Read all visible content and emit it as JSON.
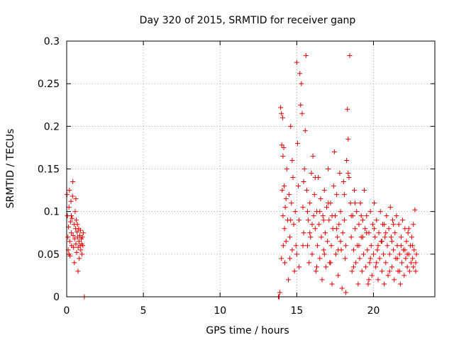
{
  "chart_data": {
    "type": "scatter",
    "title": "Day 320 of 2015, SRMTID for receiver ganp",
    "xlabel": "GPS time / hours",
    "ylabel": "SRMTID / TECUs",
    "xlim": [
      0,
      24
    ],
    "ylim": [
      0,
      0.3
    ],
    "x_ticks": [
      0,
      5,
      10,
      15,
      20
    ],
    "x_tick_labels": [
      "0",
      "5",
      "10",
      "15",
      "20"
    ],
    "y_ticks": [
      0,
      0.05,
      0.1,
      0.15,
      0.2,
      0.25,
      0.3
    ],
    "y_tick_labels": [
      "0",
      "0.05",
      "0.1",
      "0.15",
      "0.2",
      "0.25",
      "0.3"
    ],
    "grid": true,
    "marker": "+",
    "series": [
      {
        "name": "ganp SRMTID",
        "color": "#e00000",
        "points": [
          [
            0.02,
            0.12
          ],
          [
            0.05,
            0.095
          ],
          [
            0.08,
            0.07
          ],
          [
            0.1,
            0.055
          ],
          [
            0.12,
            0.082
          ],
          [
            0.15,
            0.105
          ],
          [
            0.18,
            0.125
          ],
          [
            0.2,
            0.065
          ],
          [
            0.22,
            0.048
          ],
          [
            0.25,
            0.088
          ],
          [
            0.28,
            0.112
          ],
          [
            0.3,
            0.075
          ],
          [
            0.32,
            0.06
          ],
          [
            0.35,
            0.092
          ],
          [
            0.38,
            0.118
          ],
          [
            0.4,
            0.135
          ],
          [
            0.42,
            0.072
          ],
          [
            0.45,
            0.058
          ],
          [
            0.48,
            0.085
          ],
          [
            0.5,
            0.04
          ],
          [
            0.52,
            0.068
          ],
          [
            0.55,
            0.1
          ],
          [
            0.58,
            0.08
          ],
          [
            0.6,
            0.062
          ],
          [
            0.62,
            0.09
          ],
          [
            0.65,
            0.052
          ],
          [
            0.68,
            0.076
          ],
          [
            0.7,
            0.085
          ],
          [
            0.72,
            0.07
          ],
          [
            0.75,
            0.058
          ],
          [
            0.78,
            0.08
          ],
          [
            0.8,
            0.065
          ],
          [
            0.82,
            0.045
          ],
          [
            0.85,
            0.072
          ],
          [
            0.88,
            0.06
          ],
          [
            0.9,
            0.078
          ],
          [
            0.92,
            0.055
          ],
          [
            0.95,
            0.068
          ],
          [
            0.98,
            0.062
          ],
          [
            1.0,
            0.05
          ],
          [
            1.02,
            0.07
          ],
          [
            1.05,
            0.06
          ],
          [
            1.08,
            0.075
          ],
          [
            0.74,
            0.03
          ],
          [
            0.15,
            0.05
          ],
          [
            0.3,
            0.095
          ],
          [
            0.6,
            0.115
          ],
          [
            1.15,
            0.0
          ],
          [
            13.8,
            0.0
          ],
          [
            13.85,
            0.0
          ],
          [
            13.9,
            0.005
          ],
          [
            13.95,
            0.222
          ],
          [
            14.0,
            0.215
          ],
          [
            14.02,
            0.178
          ],
          [
            14.05,
            0.125
          ],
          [
            14.08,
            0.21
          ],
          [
            14.1,
            0.095
          ],
          [
            14.12,
            0.06
          ],
          [
            14.15,
            0.175
          ],
          [
            14.18,
            0.13
          ],
          [
            14.2,
            0.08
          ],
          [
            14.22,
            0.04
          ],
          [
            14.25,
            0.105
          ],
          [
            14.3,
            0.065
          ],
          [
            14.35,
            0.15
          ],
          [
            14.4,
            0.09
          ],
          [
            14.45,
            0.02
          ],
          [
            14.5,
            0.12
          ],
          [
            14.55,
            0.07
          ],
          [
            14.6,
            0.2
          ],
          [
            14.65,
            0.11
          ],
          [
            14.7,
            0.055
          ],
          [
            14.75,
            0.14
          ],
          [
            14.8,
            0.085
          ],
          [
            14.85,
            0.03
          ],
          [
            14.9,
            0.1
          ],
          [
            14.95,
            0.06
          ],
          [
            15.0,
            0.275
          ],
          [
            15.05,
            0.18
          ],
          [
            15.1,
            0.13
          ],
          [
            15.15,
            0.09
          ],
          [
            15.2,
            0.262
          ],
          [
            15.25,
            0.225
          ],
          [
            15.3,
            0.25
          ],
          [
            15.35,
            0.215
          ],
          [
            15.4,
            0.105
          ],
          [
            15.45,
            0.075
          ],
          [
            15.5,
            0.15
          ],
          [
            15.55,
            0.195
          ],
          [
            15.6,
            0.283
          ],
          [
            15.65,
            0.125
          ],
          [
            15.7,
            0.06
          ],
          [
            15.75,
            0.09
          ],
          [
            15.8,
            0.04
          ],
          [
            15.85,
            0.11
          ],
          [
            15.9,
            0.07
          ],
          [
            15.95,
            0.145
          ],
          [
            16.0,
            0.05
          ],
          [
            16.05,
            0.165
          ],
          [
            16.1,
            0.095
          ],
          [
            16.15,
            0.12
          ],
          [
            16.2,
            0.08
          ],
          [
            16.25,
            0.03
          ],
          [
            16.3,
            0.1
          ],
          [
            16.35,
            0.06
          ],
          [
            16.4,
            0.14
          ],
          [
            16.45,
            0.085
          ],
          [
            16.5,
            0.045
          ],
          [
            16.55,
            0.115
          ],
          [
            16.6,
            0.07
          ],
          [
            16.65,
            0.02
          ],
          [
            16.7,
            0.095
          ],
          [
            16.75,
            0.055
          ],
          [
            16.8,
            0.125
          ],
          [
            16.85,
            0.075
          ],
          [
            16.9,
            0.035
          ],
          [
            16.95,
            0.105
          ],
          [
            17.0,
            0.065
          ],
          [
            17.05,
            0.15
          ],
          [
            17.1,
            0.09
          ],
          [
            17.15,
            0.04
          ],
          [
            17.2,
            0.11
          ],
          [
            17.25,
            0.06
          ],
          [
            17.3,
            0.015
          ],
          [
            17.35,
            0.08
          ],
          [
            17.4,
            0.13
          ],
          [
            17.45,
            0.17
          ],
          [
            17.5,
            0.095
          ],
          [
            17.55,
            0.05
          ],
          [
            17.6,
            0.12
          ],
          [
            17.65,
            0.07
          ],
          [
            17.7,
            0.025
          ],
          [
            17.75,
            0.085
          ],
          [
            17.8,
            0.145
          ],
          [
            17.85,
            0.1
          ],
          [
            17.9,
            0.055
          ],
          [
            17.95,
            0.01
          ],
          [
            18.0,
            0.075
          ],
          [
            18.05,
            0.135
          ],
          [
            18.1,
            0.09
          ],
          [
            18.15,
            0.045
          ],
          [
            18.2,
            0.005
          ],
          [
            18.25,
            0.16
          ],
          [
            18.3,
            0.22
          ],
          [
            18.35,
            0.185
          ],
          [
            18.4,
            0.14
          ],
          [
            18.45,
            0.283
          ],
          [
            18.5,
            0.11
          ],
          [
            18.55,
            0.07
          ],
          [
            18.6,
            0.03
          ],
          [
            18.65,
            0.095
          ],
          [
            18.7,
            0.055
          ],
          [
            18.75,
            0.125
          ],
          [
            18.8,
            0.08
          ],
          [
            18.85,
            0.04
          ],
          [
            18.9,
            0.1
          ],
          [
            18.95,
            0.06
          ],
          [
            19.0,
            0.015
          ],
          [
            19.05,
            0.085
          ],
          [
            19.1,
            0.045
          ],
          [
            19.15,
            0.11
          ],
          [
            19.2,
            0.07
          ],
          [
            19.25,
            0.03
          ],
          [
            19.3,
            0.09
          ],
          [
            19.35,
            0.05
          ],
          [
            19.4,
            0.125
          ],
          [
            19.45,
            0.08
          ],
          [
            19.5,
            0.035
          ],
          [
            19.55,
            0.095
          ],
          [
            19.6,
            0.055
          ],
          [
            19.65,
            0.015
          ],
          [
            19.7,
            0.075
          ],
          [
            19.75,
            0.04
          ],
          [
            19.8,
            0.1
          ],
          [
            19.85,
            0.06
          ],
          [
            19.9,
            0.025
          ],
          [
            19.95,
            0.085
          ],
          [
            20.0,
            0.05
          ],
          [
            20.05,
            0.11
          ],
          [
            20.1,
            0.07
          ],
          [
            20.15,
            0.035
          ],
          [
            20.2,
            0.09
          ],
          [
            20.25,
            0.055
          ],
          [
            20.3,
            0.02
          ],
          [
            20.35,
            0.075
          ],
          [
            20.4,
            0.045
          ],
          [
            20.45,
            0.1
          ],
          [
            20.5,
            0.065
          ],
          [
            20.55,
            0.03
          ],
          [
            20.6,
            0.085
          ],
          [
            20.65,
            0.05
          ],
          [
            20.7,
            0.015
          ],
          [
            20.75,
            0.07
          ],
          [
            20.8,
            0.04
          ],
          [
            20.85,
            0.095
          ],
          [
            20.9,
            0.06
          ],
          [
            20.95,
            0.025
          ],
          [
            21.0,
            0.08
          ],
          [
            21.05,
            0.05
          ],
          [
            21.1,
            0.105
          ],
          [
            21.15,
            0.07
          ],
          [
            21.2,
            0.035
          ],
          [
            21.25,
            0.09
          ],
          [
            21.3,
            0.055
          ],
          [
            21.35,
            0.02
          ],
          [
            21.4,
            0.075
          ],
          [
            21.45,
            0.045
          ],
          [
            21.5,
            0.095
          ],
          [
            21.55,
            0.06
          ],
          [
            21.6,
            0.03
          ],
          [
            21.65,
            0.085
          ],
          [
            21.7,
            0.05
          ],
          [
            21.75,
            0.015
          ],
          [
            21.8,
            0.07
          ],
          [
            21.85,
            0.04
          ],
          [
            21.9,
            0.09
          ],
          [
            21.95,
            0.055
          ],
          [
            22.0,
            0.025
          ],
          [
            22.05,
            0.08
          ],
          [
            22.1,
            0.045
          ],
          [
            22.15,
            0.065
          ],
          [
            22.2,
            0.035
          ],
          [
            22.25,
            0.075
          ],
          [
            22.3,
            0.05
          ],
          [
            22.35,
            0.03
          ],
          [
            22.4,
            0.06
          ],
          [
            22.45,
            0.04
          ],
          [
            22.5,
            0.07
          ],
          [
            22.55,
            0.045
          ],
          [
            22.6,
            0.035
          ],
          [
            22.65,
            0.055
          ],
          [
            22.7,
            0.102
          ],
          [
            22.75,
            0.04
          ],
          [
            22.8,
            0.05
          ],
          [
            14.1,
            0.165
          ],
          [
            14.3,
            0.115
          ],
          [
            14.55,
            0.045
          ],
          [
            14.7,
            0.16
          ],
          [
            15.15,
            0.035
          ],
          [
            15.45,
            0.135
          ],
          [
            15.7,
            0.1
          ],
          [
            16.0,
            0.085
          ],
          [
            16.2,
            0.14
          ],
          [
            16.5,
            0.1
          ],
          [
            16.8,
            0.05
          ],
          [
            17.05,
            0.11
          ],
          [
            17.3,
            0.095
          ],
          [
            17.6,
            0.08
          ],
          [
            17.85,
            0.065
          ],
          [
            18.1,
            0.12
          ],
          [
            18.35,
            0.145
          ],
          [
            18.55,
            0.095
          ],
          [
            18.8,
            0.11
          ],
          [
            19.05,
            0.06
          ],
          [
            19.3,
            0.07
          ],
          [
            19.55,
            0.075
          ],
          [
            19.8,
            0.045
          ],
          [
            20.05,
            0.08
          ],
          [
            20.3,
            0.06
          ],
          [
            20.55,
            0.065
          ],
          [
            20.8,
            0.075
          ],
          [
            21.05,
            0.03
          ],
          [
            21.3,
            0.085
          ],
          [
            21.55,
            0.045
          ],
          [
            21.8,
            0.06
          ],
          [
            22.05,
            0.055
          ],
          [
            22.3,
            0.08
          ],
          [
            22.55,
            0.06
          ],
          [
            22.75,
            0.03
          ],
          [
            14.0,
            0.045
          ],
          [
            14.6,
            0.09
          ],
          [
            15.0,
            0.05
          ],
          [
            15.4,
            0.06
          ],
          [
            15.85,
            0.075
          ],
          [
            16.3,
            0.035
          ],
          [
            16.75,
            0.09
          ],
          [
            17.2,
            0.04
          ],
          [
            17.7,
            0.055
          ],
          [
            18.2,
            0.06
          ],
          [
            18.7,
            0.035
          ],
          [
            19.2,
            0.095
          ],
          [
            19.7,
            0.02
          ],
          [
            20.2,
            0.04
          ],
          [
            20.7,
            0.085
          ],
          [
            21.2,
            0.065
          ],
          [
            21.7,
            0.03
          ],
          [
            22.2,
            0.05
          ],
          [
            22.6,
            0.085
          ]
        ]
      }
    ]
  }
}
